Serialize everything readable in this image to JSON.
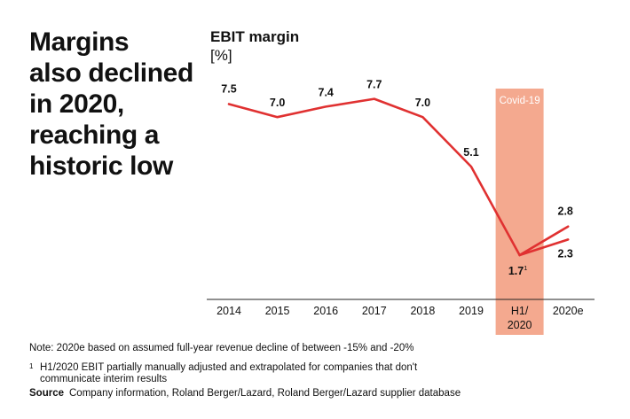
{
  "headline": [
    "Margins",
    "also declined",
    "in 2020,",
    "reaching a",
    "historic low"
  ],
  "chart_data": {
    "type": "line",
    "title": "EBIT margin",
    "unit": "[%]",
    "categories": [
      "2014",
      "2015",
      "2016",
      "2017",
      "2018",
      "2019",
      "H1/\n2020",
      "2020e"
    ],
    "series": [
      {
        "points": [
          {
            "x": "2014",
            "y": 7.5,
            "label": "7.5"
          },
          {
            "x": "2015",
            "y": 7.0,
            "label": "7.0"
          },
          {
            "x": "2016",
            "y": 7.4,
            "label": "7.4"
          },
          {
            "x": "2017",
            "y": 7.7,
            "label": "7.7"
          },
          {
            "x": "2018",
            "y": 7.0,
            "label": "7.0"
          },
          {
            "x": "2019",
            "y": 5.1,
            "label": "5.1"
          },
          {
            "x": "H1/\n2020",
            "y": 1.7,
            "label": "1.7",
            "footnote": "1"
          }
        ]
      },
      {
        "points": [
          {
            "x": "H1/\n2020",
            "y": 1.7
          },
          {
            "x": "2020e",
            "y": 2.8,
            "label": "2.8"
          }
        ]
      },
      {
        "points": [
          {
            "x": "H1/\n2020",
            "y": 1.7
          },
          {
            "x": "2020e",
            "y": 2.3,
            "label": "2.3"
          }
        ]
      }
    ],
    "highlight": {
      "category": "H1/\n2020",
      "label": "Covid-19",
      "color": "#f4a98f"
    },
    "line_color": "#e03131",
    "ylim": [
      0,
      10
    ],
    "grid": false
  },
  "notes": {
    "note": "Note: 2020e based on assumed full-year revenue decline of between -15% and -20%",
    "footnote_mark": "1",
    "footnote": "H1/2020 EBIT partially manually adjusted and extrapolated for companies that don't communicate interim results",
    "source_label": "Source",
    "source": "Company information, Roland Berger/Lazard, Roland Berger/Lazard supplier database"
  }
}
